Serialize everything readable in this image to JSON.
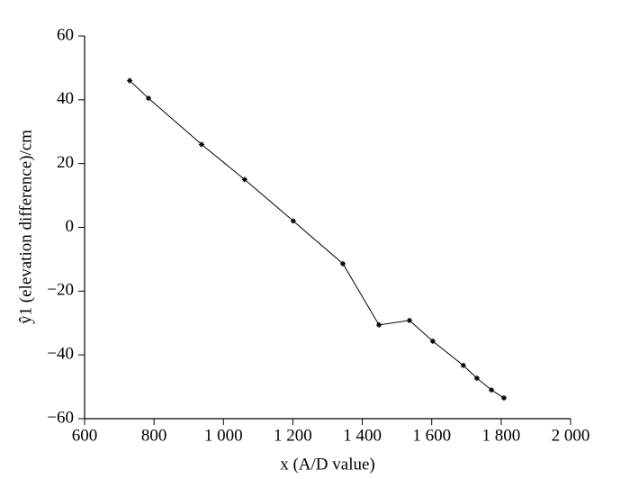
{
  "chart_data": {
    "type": "line",
    "x_label": "x (A/D value)",
    "y_label": "ŷ1 (elevation difference)/cm",
    "xlim": [
      600,
      2000
    ],
    "ylim": [
      -60,
      60
    ],
    "xticks": [
      600,
      800,
      {
        "value": 1000,
        "label": "1 000"
      },
      {
        "value": 1200,
        "label": "1 200"
      },
      {
        "value": 1400,
        "label": "1 400"
      },
      {
        "value": 1600,
        "label": "1 600"
      },
      {
        "value": 1800,
        "label": "1 800"
      },
      {
        "value": 2000,
        "label": "2 000"
      }
    ],
    "yticks": [
      {
        "value": -60,
        "label": "−60"
      },
      {
        "value": -40,
        "label": "−40"
      },
      {
        "value": -20,
        "label": "−20"
      },
      0,
      20,
      40,
      60
    ],
    "x": [
      730,
      784,
      937,
      1061,
      1201,
      1344,
      1448,
      1536,
      1603,
      1691,
      1730,
      1772,
      1808
    ],
    "series": [
      {
        "color": "#000000",
        "values": [
          46,
          40.5,
          26,
          15,
          2,
          -11.4,
          -30.6,
          -29.2,
          -35.7,
          -43.3,
          -47.3,
          -51,
          -53.5
        ]
      }
    ]
  }
}
